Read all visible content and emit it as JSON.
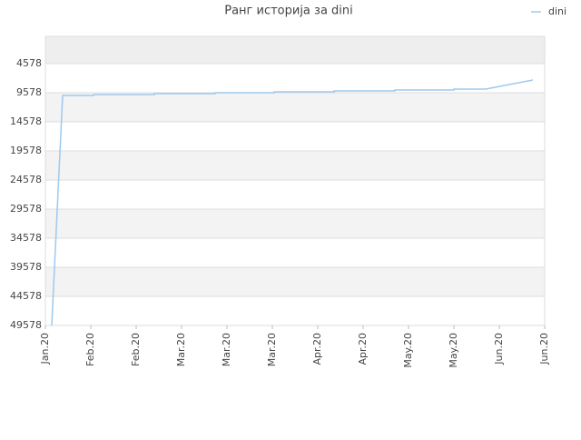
{
  "chart_data": {
    "type": "line",
    "title": "Ранг историја за dini",
    "xlim": [
      0,
      11
    ],
    "xticks": [
      {
        "value": 0,
        "label": "Jan.20"
      },
      {
        "value": 1,
        "label": "Feb.20"
      },
      {
        "value": 2,
        "label": "Feb.20"
      },
      {
        "value": 3,
        "label": "Mar.20"
      },
      {
        "value": 4,
        "label": "Mar.20"
      },
      {
        "value": 5,
        "label": "Mar.20"
      },
      {
        "value": 6,
        "label": "Apr.20"
      },
      {
        "value": 7,
        "label": "Apr.20"
      },
      {
        "value": 8,
        "label": "May.20"
      },
      {
        "value": 9,
        "label": "May.20"
      },
      {
        "value": 10,
        "label": "Jun.20"
      },
      {
        "value": 11,
        "label": "Jun.20"
      }
    ],
    "ylim": [
      49578,
      -110
    ],
    "yticks": [
      4578,
      9578,
      14578,
      19578,
      24578,
      29578,
      34578,
      39578,
      44578,
      49578
    ],
    "grid": true,
    "legend": "upper right",
    "series": [
      {
        "name": "dini",
        "color": "#9ec9ef",
        "x": [
          0.14,
          0.38,
          1.06,
          1.06,
          2.4,
          2.4,
          3.74,
          3.74,
          5.04,
          5.04,
          6.36,
          6.36,
          7.7,
          7.7,
          9.0,
          9.0,
          9.7,
          10.74
        ],
        "values": [
          49578,
          10047,
          10047,
          9890,
          9890,
          9734,
          9734,
          9578,
          9578,
          9422,
          9422,
          9266,
          9266,
          9109,
          9109,
          8953,
          8953,
          7390
        ]
      }
    ]
  }
}
